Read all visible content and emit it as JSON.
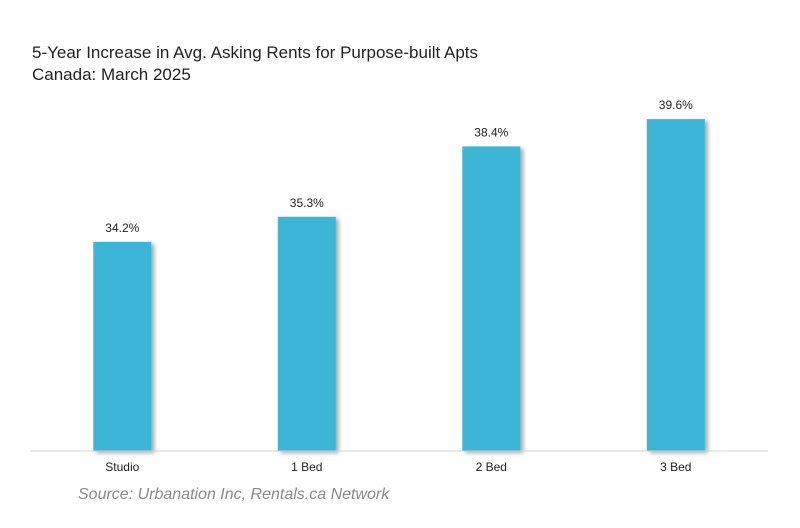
{
  "chart_data": {
    "type": "bar",
    "title": "5-Year Increase in Avg. Asking Rents for Purpose-built Apts",
    "subtitle": "Canada: March 2025",
    "categories": [
      "Studio",
      "1 Bed",
      "2 Bed",
      "3 Bed"
    ],
    "values": [
      34.2,
      35.3,
      38.4,
      39.6
    ],
    "data_labels": [
      "34.2%",
      "35.3%",
      "38.4%",
      "39.6%"
    ],
    "xlabel": "",
    "ylabel": "",
    "ylim": [
      25,
      40
    ],
    "grid": false,
    "legend": "none",
    "bar_color": "#3db5d6",
    "source": "Source: Urbanation Inc, Rentals.ca Network"
  }
}
